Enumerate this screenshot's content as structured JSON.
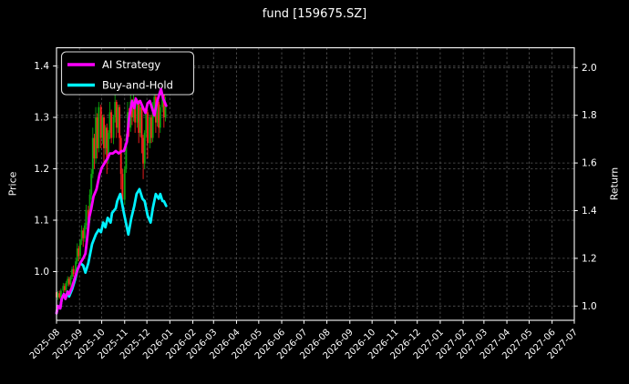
{
  "title": "fund [159675.SZ]",
  "colors": {
    "background": "#000000",
    "text": "#ffffff",
    "spine": "#ffffff",
    "grid": "#565656",
    "ai_strategy": "#ff00ff",
    "buy_and_hold": "#00f2ff",
    "candle_up": "#0ca30c",
    "candle_down": "#ff1f1f",
    "legend_border": "#d9d9d9",
    "legend_bg": "#000000"
  },
  "chart_data": {
    "type": "candlestick+line",
    "title": "fund [159675.SZ]",
    "left_axis": {
      "label": "Price",
      "ticks": [
        1.0,
        1.1,
        1.2,
        1.3,
        1.4
      ],
      "range": [
        0.905,
        1.435
      ]
    },
    "right_axis": {
      "label": "Return",
      "ticks": [
        1.0,
        1.2,
        1.4,
        1.6,
        1.8,
        2.0
      ],
      "range": [
        0.94,
        2.083
      ]
    },
    "x_axis": {
      "start_date": "2025-08-01",
      "tick_labels": [
        "2025-08",
        "2025-09",
        "2025-10",
        "2025-11",
        "2025-12",
        "2026-01",
        "2026-02",
        "2026-03",
        "2026-04",
        "2026-05",
        "2026-06",
        "2026-07",
        "2026-08",
        "2026-09",
        "2026-10",
        "2026-11",
        "2026-12",
        "2027-01",
        "2027-02",
        "2027-03",
        "2027-04",
        "2027-05",
        "2027-06",
        "2027-07"
      ],
      "grid": true
    },
    "legend": {
      "position": "upper-left",
      "entries": [
        "AI Strategy",
        "Buy-and-Hold"
      ]
    },
    "series": [
      {
        "name": "AI Strategy",
        "axis": "right",
        "color_key": "ai_strategy",
        "points": [
          [
            0,
            0.97
          ],
          [
            2,
            1.0
          ],
          [
            5,
            0.99
          ],
          [
            7,
            1.03
          ],
          [
            10,
            1.05
          ],
          [
            12,
            1.03
          ],
          [
            15,
            1.06
          ],
          [
            17,
            1.05
          ],
          [
            21,
            1.08
          ],
          [
            25,
            1.12
          ],
          [
            28,
            1.15
          ],
          [
            32,
            1.18
          ],
          [
            36,
            1.2
          ],
          [
            39,
            1.22
          ],
          [
            42,
            1.3
          ],
          [
            44,
            1.37
          ],
          [
            47,
            1.41
          ],
          [
            50,
            1.46
          ],
          [
            54,
            1.49
          ],
          [
            58,
            1.55
          ],
          [
            61,
            1.58
          ],
          [
            65,
            1.6
          ],
          [
            69,
            1.62
          ],
          [
            72,
            1.64
          ],
          [
            76,
            1.64
          ],
          [
            80,
            1.65
          ],
          [
            84,
            1.64
          ],
          [
            88,
            1.65
          ],
          [
            91,
            1.65
          ],
          [
            95,
            1.69
          ],
          [
            98,
            1.79
          ],
          [
            102,
            1.86
          ],
          [
            105,
            1.83
          ],
          [
            107,
            1.87
          ],
          [
            110,
            1.85
          ],
          [
            113,
            1.86
          ],
          [
            117,
            1.83
          ],
          [
            120,
            1.81
          ],
          [
            123,
            1.85
          ],
          [
            126,
            1.86
          ],
          [
            129,
            1.83
          ],
          [
            132,
            1.8
          ],
          [
            136,
            1.86
          ],
          [
            139,
            1.89
          ],
          [
            141,
            1.91
          ],
          [
            144,
            1.87
          ],
          [
            148,
            1.84
          ]
        ]
      },
      {
        "name": "Buy-and-Hold",
        "axis": "right",
        "color_key": "buy_and_hold",
        "points": [
          [
            0,
            0.97
          ],
          [
            2,
            1.0
          ],
          [
            5,
            0.99
          ],
          [
            7,
            1.03
          ],
          [
            10,
            1.05
          ],
          [
            12,
            1.03
          ],
          [
            15,
            1.06
          ],
          [
            17,
            1.04
          ],
          [
            21,
            1.07
          ],
          [
            25,
            1.11
          ],
          [
            28,
            1.15
          ],
          [
            32,
            1.18
          ],
          [
            36,
            1.17
          ],
          [
            39,
            1.14
          ],
          [
            43,
            1.18
          ],
          [
            48,
            1.26
          ],
          [
            53,
            1.3
          ],
          [
            57,
            1.32
          ],
          [
            60,
            1.31
          ],
          [
            63,
            1.35
          ],
          [
            66,
            1.33
          ],
          [
            69,
            1.37
          ],
          [
            73,
            1.35
          ],
          [
            75,
            1.39
          ],
          [
            80,
            1.41
          ],
          [
            82,
            1.44
          ],
          [
            86,
            1.47
          ],
          [
            91,
            1.39
          ],
          [
            95,
            1.33
          ],
          [
            97,
            1.3
          ],
          [
            101,
            1.37
          ],
          [
            105,
            1.42
          ],
          [
            108,
            1.47
          ],
          [
            112,
            1.49
          ],
          [
            116,
            1.45
          ],
          [
            119,
            1.44
          ],
          [
            123,
            1.38
          ],
          [
            127,
            1.35
          ],
          [
            130,
            1.41
          ],
          [
            134,
            1.47
          ],
          [
            138,
            1.45
          ],
          [
            140,
            1.47
          ],
          [
            143,
            1.44
          ],
          [
            145,
            1.44
          ],
          [
            148,
            1.42
          ]
        ]
      }
    ],
    "candles": {
      "axis": "left",
      "ohlc_format": [
        "day_offset",
        "open",
        "high",
        "low",
        "close"
      ],
      "ohlc": [
        [
          0,
          0.96,
          0.966,
          0.908,
          0.95
        ],
        [
          2,
          0.95,
          0.962,
          0.945,
          0.958
        ],
        [
          4,
          0.958,
          0.963,
          0.947,
          0.95
        ],
        [
          6,
          0.95,
          0.967,
          0.948,
          0.963
        ],
        [
          9,
          0.963,
          0.978,
          0.956,
          0.972
        ],
        [
          11,
          0.972,
          0.977,
          0.96,
          0.964
        ],
        [
          13,
          0.964,
          0.982,
          0.96,
          0.978
        ],
        [
          15,
          0.978,
          0.991,
          0.972,
          0.986
        ],
        [
          17,
          0.986,
          0.99,
          0.971,
          0.975
        ],
        [
          19,
          0.975,
          0.993,
          0.97,
          0.99
        ],
        [
          21,
          0.99,
          1.01,
          0.985,
          1.005
        ],
        [
          23,
          1.005,
          1.012,
          0.99,
          0.995
        ],
        [
          26,
          0.995,
          1.025,
          0.992,
          1.02
        ],
        [
          28,
          1.02,
          1.055,
          1.015,
          1.045
        ],
        [
          30,
          1.045,
          1.05,
          1.02,
          1.03
        ],
        [
          32,
          1.03,
          1.063,
          1.025,
          1.06
        ],
        [
          34,
          1.06,
          1.09,
          1.052,
          1.08
        ],
        [
          36,
          1.08,
          1.085,
          1.048,
          1.065
        ],
        [
          38,
          1.065,
          1.095,
          1.058,
          1.09
        ],
        [
          40,
          1.09,
          1.13,
          1.082,
          1.12
        ],
        [
          43,
          1.12,
          1.128,
          1.092,
          1.1
        ],
        [
          45,
          1.1,
          1.16,
          1.095,
          1.15
        ],
        [
          47,
          1.15,
          1.2,
          1.14,
          1.19
        ],
        [
          49,
          1.19,
          1.28,
          1.182,
          1.26
        ],
        [
          51,
          1.26,
          1.268,
          1.2,
          1.22
        ],
        [
          53,
          1.22,
          1.32,
          1.21,
          1.3
        ],
        [
          55,
          1.3,
          1.308,
          1.22,
          1.24
        ],
        [
          57,
          1.24,
          1.33,
          1.232,
          1.32
        ],
        [
          60,
          1.32,
          1.325,
          1.24,
          1.26
        ],
        [
          62,
          1.26,
          1.305,
          1.248,
          1.3
        ],
        [
          64,
          1.3,
          1.306,
          1.21,
          1.24
        ],
        [
          66,
          1.24,
          1.285,
          1.228,
          1.28
        ],
        [
          68,
          1.28,
          1.288,
          1.19,
          1.22
        ],
        [
          70,
          1.22,
          1.275,
          1.21,
          1.27
        ],
        [
          72,
          1.27,
          1.33,
          1.258,
          1.31
        ],
        [
          74,
          1.31,
          1.315,
          1.25,
          1.26
        ],
        [
          77,
          1.26,
          1.305,
          1.248,
          1.3
        ],
        [
          79,
          1.3,
          1.345,
          1.29,
          1.33
        ],
        [
          81,
          1.33,
          1.334,
          1.26,
          1.28
        ],
        [
          83,
          1.28,
          1.325,
          1.27,
          1.32
        ],
        [
          85,
          1.32,
          1.325,
          1.23,
          1.26
        ],
        [
          87,
          1.26,
          1.265,
          1.16,
          1.19
        ],
        [
          89,
          1.19,
          1.2,
          1.12,
          1.14
        ],
        [
          92,
          1.14,
          1.205,
          1.13,
          1.2
        ],
        [
          94,
          1.2,
          1.268,
          1.192,
          1.26
        ],
        [
          96,
          1.26,
          1.33,
          1.25,
          1.31
        ],
        [
          98,
          1.31,
          1.318,
          1.262,
          1.28
        ],
        [
          100,
          1.28,
          1.345,
          1.272,
          1.33
        ],
        [
          102,
          1.33,
          1.336,
          1.285,
          1.3
        ],
        [
          104,
          1.3,
          1.35,
          1.292,
          1.335
        ],
        [
          106,
          1.335,
          1.34,
          1.27,
          1.29
        ],
        [
          109,
          1.29,
          1.335,
          1.28,
          1.33
        ],
        [
          111,
          1.33,
          1.334,
          1.25,
          1.27
        ],
        [
          113,
          1.27,
          1.325,
          1.262,
          1.32
        ],
        [
          115,
          1.32,
          1.325,
          1.23,
          1.26
        ],
        [
          117,
          1.26,
          1.266,
          1.18,
          1.21
        ],
        [
          119,
          1.21,
          1.275,
          1.2,
          1.27
        ],
        [
          121,
          1.27,
          1.315,
          1.26,
          1.31
        ],
        [
          123,
          1.31,
          1.315,
          1.22,
          1.25
        ],
        [
          126,
          1.25,
          1.305,
          1.24,
          1.3
        ],
        [
          128,
          1.3,
          1.305,
          1.25,
          1.26
        ],
        [
          130,
          1.26,
          1.33,
          1.252,
          1.31
        ],
        [
          132,
          1.31,
          1.36,
          1.3,
          1.34
        ],
        [
          134,
          1.34,
          1.345,
          1.27,
          1.29
        ],
        [
          136,
          1.29,
          1.335,
          1.282,
          1.33
        ],
        [
          138,
          1.33,
          1.334,
          1.26,
          1.28
        ],
        [
          140,
          1.28,
          1.325,
          1.27,
          1.32
        ],
        [
          143,
          1.32,
          1.365,
          1.31,
          1.35
        ],
        [
          145,
          1.35,
          1.355,
          1.28,
          1.3
        ],
        [
          147,
          1.3,
          1.34,
          1.292,
          1.33
        ]
      ]
    }
  }
}
